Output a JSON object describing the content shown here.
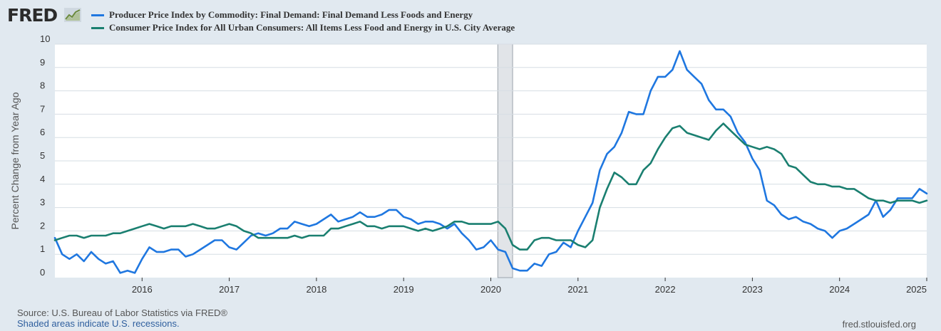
{
  "brand": {
    "logo_text": "FRED"
  },
  "footer": {
    "source": "Source: U.S. Bureau of Labor Statistics via FRED®",
    "note": "Shaded areas indicate U.S. recessions.",
    "site": "fred.stlouisfed.org"
  },
  "chart_data": {
    "type": "line",
    "ylabel": "Percent Change from Year Ago",
    "xlabel": "",
    "ylim": [
      0,
      10
    ],
    "yticks": [
      0,
      1,
      2,
      3,
      4,
      5,
      6,
      7,
      8,
      9,
      10
    ],
    "xlim": [
      2015.0,
      2025.0
    ],
    "xticks": [
      "2016",
      "2017",
      "2018",
      "2019",
      "2020",
      "2021",
      "2022",
      "2023",
      "2024",
      "2025"
    ],
    "grid": true,
    "legend_position": "top-left",
    "recessions": [
      [
        2020.08,
        2020.25
      ]
    ],
    "series": [
      {
        "name": "Producer Price Index by Commodity: Final Demand: Final Demand Less Foods and Energy",
        "color": "#1f77e0",
        "x": [
          2015.0,
          2015.083,
          2015.167,
          2015.25,
          2015.333,
          2015.417,
          2015.5,
          2015.583,
          2015.667,
          2015.75,
          2015.833,
          2015.917,
          2016.0,
          2016.083,
          2016.167,
          2016.25,
          2016.333,
          2016.417,
          2016.5,
          2016.583,
          2016.667,
          2016.75,
          2016.833,
          2016.917,
          2017.0,
          2017.083,
          2017.167,
          2017.25,
          2017.333,
          2017.417,
          2017.5,
          2017.583,
          2017.667,
          2017.75,
          2017.833,
          2017.917,
          2018.0,
          2018.083,
          2018.167,
          2018.25,
          2018.333,
          2018.417,
          2018.5,
          2018.583,
          2018.667,
          2018.75,
          2018.833,
          2018.917,
          2019.0,
          2019.083,
          2019.167,
          2019.25,
          2019.333,
          2019.417,
          2019.5,
          2019.583,
          2019.667,
          2019.75,
          2019.833,
          2019.917,
          2020.0,
          2020.083,
          2020.167,
          2020.25,
          2020.333,
          2020.417,
          2020.5,
          2020.583,
          2020.667,
          2020.75,
          2020.833,
          2020.917,
          2021.0,
          2021.083,
          2021.167,
          2021.25,
          2021.333,
          2021.417,
          2021.5,
          2021.583,
          2021.667,
          2021.75,
          2021.833,
          2021.917,
          2022.0,
          2022.083,
          2022.167,
          2022.25,
          2022.333,
          2022.417,
          2022.5,
          2022.583,
          2022.667,
          2022.75,
          2022.833,
          2022.917,
          2023.0,
          2023.083,
          2023.167,
          2023.25,
          2023.333,
          2023.417,
          2023.5,
          2023.583,
          2023.667,
          2023.75,
          2023.833,
          2023.917,
          2024.0,
          2024.083,
          2024.167,
          2024.25,
          2024.333,
          2024.417,
          2024.5,
          2024.583,
          2024.667,
          2024.75,
          2024.833,
          2024.917,
          2025.0
        ],
        "y": [
          1.7,
          1.0,
          0.8,
          1.0,
          0.7,
          1.1,
          0.8,
          0.6,
          0.7,
          0.2,
          0.3,
          0.2,
          0.8,
          1.3,
          1.1,
          1.1,
          1.2,
          1.2,
          0.9,
          1.0,
          1.2,
          1.4,
          1.6,
          1.6,
          1.3,
          1.2,
          1.5,
          1.8,
          1.9,
          1.8,
          1.9,
          2.1,
          2.1,
          2.4,
          2.3,
          2.2,
          2.3,
          2.5,
          2.7,
          2.4,
          2.5,
          2.6,
          2.8,
          2.6,
          2.6,
          2.7,
          2.9,
          2.9,
          2.6,
          2.5,
          2.3,
          2.4,
          2.4,
          2.3,
          2.1,
          2.3,
          1.9,
          1.6,
          1.2,
          1.3,
          1.6,
          1.2,
          1.1,
          0.4,
          0.3,
          0.3,
          0.6,
          0.5,
          1.0,
          1.1,
          1.5,
          1.3,
          2.0,
          2.6,
          3.2,
          4.6,
          5.3,
          5.6,
          6.2,
          7.1,
          7.0,
          7.0,
          8.0,
          8.6,
          8.6,
          8.9,
          9.7,
          8.9,
          8.6,
          8.3,
          7.6,
          7.2,
          7.2,
          6.9,
          6.2,
          5.8,
          5.1,
          4.6,
          3.3,
          3.1,
          2.7,
          2.5,
          2.6,
          2.4,
          2.3,
          2.1,
          2.0,
          1.7,
          2.0,
          2.1,
          2.3,
          2.5,
          2.7,
          3.3,
          2.6,
          2.9,
          3.4,
          3.4,
          3.4,
          3.8,
          3.6
        ]
      },
      {
        "name": "Consumer Price Index for All Urban Consumers: All Items Less Food and Energy in U.S. City Average",
        "color": "#1a7f70",
        "x": [
          2015.0,
          2015.083,
          2015.167,
          2015.25,
          2015.333,
          2015.417,
          2015.5,
          2015.583,
          2015.667,
          2015.75,
          2015.833,
          2015.917,
          2016.0,
          2016.083,
          2016.167,
          2016.25,
          2016.333,
          2016.417,
          2016.5,
          2016.583,
          2016.667,
          2016.75,
          2016.833,
          2016.917,
          2017.0,
          2017.083,
          2017.167,
          2017.25,
          2017.333,
          2017.417,
          2017.5,
          2017.583,
          2017.667,
          2017.75,
          2017.833,
          2017.917,
          2018.0,
          2018.083,
          2018.167,
          2018.25,
          2018.333,
          2018.417,
          2018.5,
          2018.583,
          2018.667,
          2018.75,
          2018.833,
          2018.917,
          2019.0,
          2019.083,
          2019.167,
          2019.25,
          2019.333,
          2019.417,
          2019.5,
          2019.583,
          2019.667,
          2019.75,
          2019.833,
          2019.917,
          2020.0,
          2020.083,
          2020.167,
          2020.25,
          2020.333,
          2020.417,
          2020.5,
          2020.583,
          2020.667,
          2020.75,
          2020.833,
          2020.917,
          2021.0,
          2021.083,
          2021.167,
          2021.25,
          2021.333,
          2021.417,
          2021.5,
          2021.583,
          2021.667,
          2021.75,
          2021.833,
          2021.917,
          2022.0,
          2022.083,
          2022.167,
          2022.25,
          2022.333,
          2022.417,
          2022.5,
          2022.583,
          2022.667,
          2022.75,
          2022.833,
          2022.917,
          2023.0,
          2023.083,
          2023.167,
          2023.25,
          2023.333,
          2023.417,
          2023.5,
          2023.583,
          2023.667,
          2023.75,
          2023.833,
          2023.917,
          2024.0,
          2024.083,
          2024.167,
          2024.25,
          2024.333,
          2024.417,
          2024.5,
          2024.583,
          2024.667,
          2024.75,
          2024.833,
          2024.917,
          2025.0
        ],
        "y": [
          1.6,
          1.7,
          1.8,
          1.8,
          1.7,
          1.8,
          1.8,
          1.8,
          1.9,
          1.9,
          2.0,
          2.1,
          2.2,
          2.3,
          2.2,
          2.1,
          2.2,
          2.2,
          2.2,
          2.3,
          2.2,
          2.1,
          2.1,
          2.2,
          2.3,
          2.2,
          2.0,
          1.9,
          1.7,
          1.7,
          1.7,
          1.7,
          1.7,
          1.8,
          1.7,
          1.8,
          1.8,
          1.8,
          2.1,
          2.1,
          2.2,
          2.3,
          2.4,
          2.2,
          2.2,
          2.1,
          2.2,
          2.2,
          2.2,
          2.1,
          2.0,
          2.1,
          2.0,
          2.1,
          2.2,
          2.4,
          2.4,
          2.3,
          2.3,
          2.3,
          2.3,
          2.4,
          2.1,
          1.4,
          1.2,
          1.2,
          1.6,
          1.7,
          1.7,
          1.6,
          1.6,
          1.6,
          1.4,
          1.3,
          1.6,
          3.0,
          3.8,
          4.5,
          4.3,
          4.0,
          4.0,
          4.6,
          4.9,
          5.5,
          6.0,
          6.4,
          6.5,
          6.2,
          6.1,
          6.0,
          5.9,
          6.3,
          6.6,
          6.3,
          6.0,
          5.7,
          5.6,
          5.5,
          5.6,
          5.5,
          5.3,
          4.8,
          4.7,
          4.4,
          4.1,
          4.0,
          4.0,
          3.9,
          3.9,
          3.8,
          3.8,
          3.6,
          3.4,
          3.3,
          3.3,
          3.2,
          3.3,
          3.3,
          3.3,
          3.2,
          3.3
        ]
      }
    ]
  }
}
